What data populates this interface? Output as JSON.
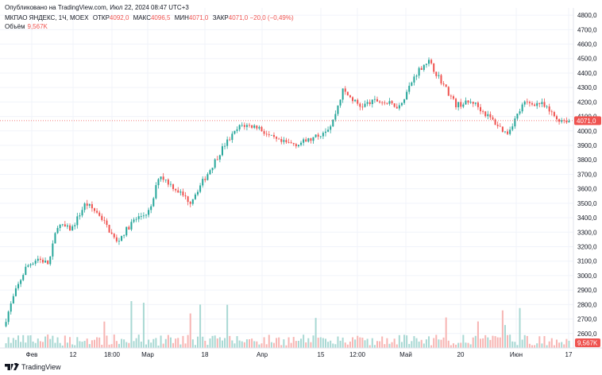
{
  "header": {
    "published": "Опубликовано на TradingView.com, Июл 22, 2024 08:47 UTC+3"
  },
  "legend": {
    "symbol": "МКПАО ЯНДЕКС, 1Ч, MOEX",
    "open_label": "ОТКР",
    "open_value": "4092,0",
    "high_label": "МАКС",
    "high_value": "4096,5",
    "low_label": "МИН",
    "low_value": "4071,0",
    "close_label": "ЗАКР",
    "close_value": "4071,0",
    "change": "−20,0 (−0,49%)",
    "volume_label": "Объём",
    "volume_value": "9,567K"
  },
  "footer": {
    "brand": "TradingView"
  },
  "colors": {
    "up": "#26a69a",
    "down": "#ef5350",
    "vol_up": "#a8d8d3",
    "vol_down": "#f7b5b3",
    "grid": "#f0f3fa"
  },
  "chart_data": {
    "type": "candlestick",
    "x_ticks": [
      "Фев",
      "12",
      "18:00",
      "Мар",
      "18",
      "Апр",
      "15",
      "12:00",
      "Май",
      "20",
      "Июн",
      "17"
    ],
    "y_ticks": [
      "4800,0",
      "4700,0",
      "4600,0",
      "4500,0",
      "4400,0",
      "4300,0",
      "4200,0",
      "4100,0",
      "4000,0",
      "3900,0",
      "3800,0",
      "3700,0",
      "3600,0",
      "3500,0",
      "3400,0",
      "3300,0",
      "3200,0",
      "3100,0",
      "3000,0",
      "2900,0",
      "2800,0",
      "2700,0",
      "2600,0"
    ],
    "ylim": [
      2500,
      4850
    ],
    "last_price": 4071,
    "last_price_label": "4071,0",
    "last_volume_label": "9,567K",
    "price_path": [
      [
        0,
        2650
      ],
      [
        0.02,
        2880
      ],
      [
        0.04,
        3060
      ],
      [
        0.06,
        3120
      ],
      [
        0.08,
        3080
      ],
      [
        0.095,
        3350
      ],
      [
        0.12,
        3320
      ],
      [
        0.145,
        3500
      ],
      [
        0.17,
        3420
      ],
      [
        0.2,
        3230
      ],
      [
        0.23,
        3380
      ],
      [
        0.26,
        3450
      ],
      [
        0.275,
        3700
      ],
      [
        0.31,
        3580
      ],
      [
        0.33,
        3510
      ],
      [
        0.36,
        3700
      ],
      [
        0.39,
        3900
      ],
      [
        0.42,
        4040
      ],
      [
        0.45,
        4030
      ],
      [
        0.47,
        3960
      ],
      [
        0.49,
        3920
      ],
      [
        0.52,
        3910
      ],
      [
        0.55,
        3950
      ],
      [
        0.58,
        4040
      ],
      [
        0.6,
        4280
      ],
      [
        0.63,
        4170
      ],
      [
        0.66,
        4210
      ],
      [
        0.7,
        4170
      ],
      [
        0.73,
        4400
      ],
      [
        0.75,
        4490
      ],
      [
        0.77,
        4370
      ],
      [
        0.8,
        4180
      ],
      [
        0.83,
        4200
      ],
      [
        0.86,
        4090
      ],
      [
        0.89,
        3980
      ],
      [
        0.92,
        4190
      ],
      [
        0.95,
        4190
      ],
      [
        0.98,
        4080
      ],
      [
        1.0,
        4071
      ]
    ]
  }
}
